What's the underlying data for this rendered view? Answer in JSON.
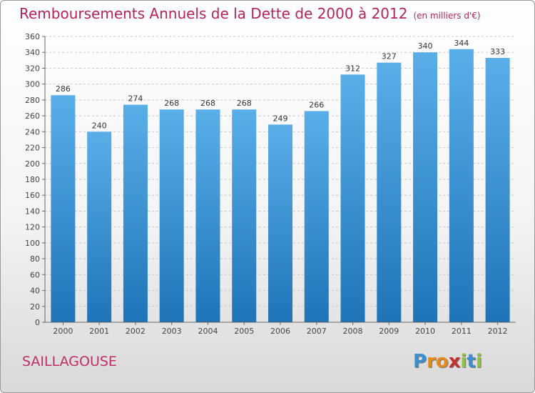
{
  "chart_data": {
    "type": "bar",
    "title": "Remboursements Annuels de la Dette de 2000 à 2012",
    "subtitle": "(en milliers d'€)",
    "categories": [
      "2000",
      "2001",
      "2002",
      "2003",
      "2004",
      "2005",
      "2006",
      "2007",
      "2008",
      "2009",
      "2010",
      "2011",
      "2012"
    ],
    "values": [
      286,
      240,
      274,
      268,
      268,
      268,
      249,
      266,
      312,
      327,
      340,
      344,
      333
    ],
    "ylim": [
      0,
      360
    ],
    "yticks": [
      0,
      20,
      40,
      60,
      80,
      100,
      120,
      140,
      160,
      180,
      200,
      220,
      240,
      260,
      280,
      300,
      320,
      340,
      360
    ],
    "grid": true,
    "xlabel": "",
    "ylabel": ""
  },
  "commune": "SAILLAGOUSE",
  "logo": [
    "P",
    "r",
    "o",
    "x",
    "i",
    "t",
    "i"
  ],
  "colors": {
    "bar_top": "#5aaee8",
    "bar_bottom": "#1f74b8",
    "title": "#b5235d",
    "logo": [
      "#3a8fd0",
      "#e48a1f",
      "#e48a1f",
      "#c4302f",
      "#8fc23d",
      "#3a8fd0",
      "#8fc23d"
    ]
  }
}
